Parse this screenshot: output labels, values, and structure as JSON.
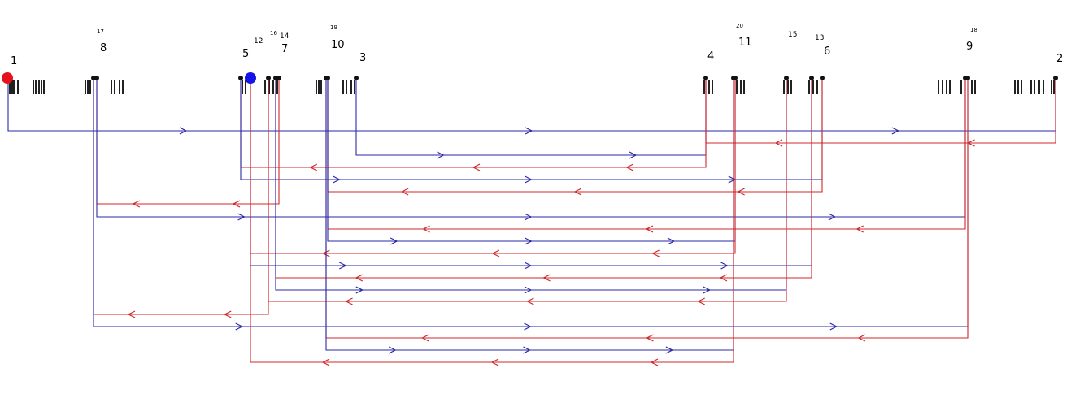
{
  "nodes": [
    {
      "id": "1",
      "label": "1",
      "label_size": "large"
    },
    {
      "id": "2",
      "label": "2",
      "label_size": "large"
    },
    {
      "id": "3",
      "label": "3",
      "label_size": "large"
    },
    {
      "id": "4",
      "label": "4",
      "label_size": "large"
    },
    {
      "id": "5",
      "label": "5",
      "label_size": "large"
    },
    {
      "id": "6",
      "label": "6",
      "label_size": "large"
    },
    {
      "id": "7",
      "label": "7",
      "label_size": "large"
    },
    {
      "id": "8",
      "label": "8",
      "label_size": "large"
    },
    {
      "id": "9",
      "label": "9",
      "label_size": "large"
    },
    {
      "id": "10",
      "label": "10",
      "label_size": "large"
    },
    {
      "id": "11",
      "label": "11",
      "label_size": "large"
    },
    {
      "id": "12",
      "label": "12",
      "label_size": "medium"
    },
    {
      "id": "13",
      "label": "13",
      "label_size": "medium"
    },
    {
      "id": "14",
      "label": "14",
      "label_size": "medium"
    },
    {
      "id": "15",
      "label": "15",
      "label_size": "medium"
    },
    {
      "id": "16",
      "label": "16",
      "label_size": "small"
    },
    {
      "id": "17",
      "label": "17",
      "label_size": "small"
    },
    {
      "id": "18",
      "label": "18",
      "label_size": "small"
    },
    {
      "id": "19",
      "label": "19",
      "label_size": "small"
    },
    {
      "id": "20",
      "label": "20",
      "label_size": "small"
    }
  ],
  "markers": [
    {
      "node": "1",
      "color": "#e8101a"
    },
    {
      "node": "12",
      "color": "#1414e8"
    }
  ],
  "colors": {
    "blue": "#2a2aa8",
    "red": "#d0272a",
    "purple": "#6a1f8a",
    "barcode": "#222222"
  },
  "connections": [
    {
      "from": "1",
      "to": "2",
      "color": "blue"
    },
    {
      "from": "2",
      "to": "4",
      "color": "red"
    },
    {
      "from": "3",
      "to": "4",
      "color": "blue"
    },
    {
      "from": "4",
      "to": "5",
      "color": "red"
    },
    {
      "from": "5",
      "to": "6",
      "color": "blue"
    },
    {
      "from": "6",
      "to": "10",
      "color": "red"
    },
    {
      "from": "7",
      "to": "8",
      "color": "red"
    },
    {
      "from": "8",
      "to": "9",
      "color": "blue"
    },
    {
      "from": "9",
      "to": "10",
      "color": "red"
    },
    {
      "from": "10",
      "to": "11",
      "color": "blue"
    },
    {
      "from": "11",
      "to": "12",
      "color": "red"
    },
    {
      "from": "12",
      "to": "13",
      "color": "blue"
    },
    {
      "from": "13",
      "to": "14",
      "color": "red"
    },
    {
      "from": "14",
      "to": "15",
      "color": "blue"
    },
    {
      "from": "15",
      "to": "16",
      "color": "red"
    },
    {
      "from": "16",
      "to": "17",
      "color": "red"
    },
    {
      "from": "17",
      "to": "18",
      "color": "blue"
    },
    {
      "from": "18",
      "to": "19",
      "color": "red"
    },
    {
      "from": "19",
      "to": "20",
      "color": "blue"
    },
    {
      "from": "20",
      "to": "12",
      "color": "red"
    }
  ]
}
